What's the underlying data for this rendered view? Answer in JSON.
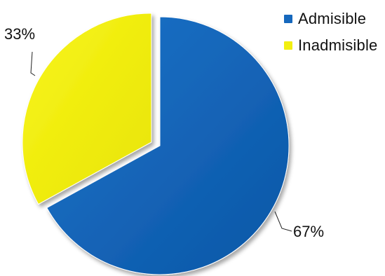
{
  "chart_data": {
    "type": "pie",
    "slices": [
      {
        "name": "Admisible",
        "value": 67,
        "label": "67%",
        "color": "#0e5fb4"
      },
      {
        "name": "Inadmisible",
        "value": 33,
        "label": "33%",
        "color": "#f2ef10"
      }
    ],
    "legend_position": "top-right",
    "exploded": "Inadmisible"
  }
}
